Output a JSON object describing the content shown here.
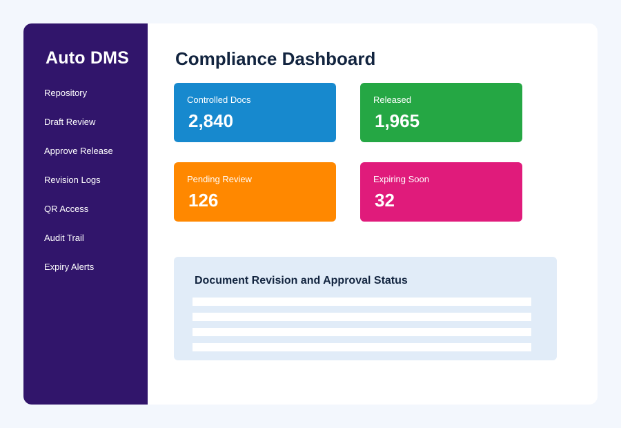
{
  "sidebar": {
    "brand": "Auto DMS",
    "items": [
      {
        "label": "Repository"
      },
      {
        "label": "Draft Review"
      },
      {
        "label": "Approve Release"
      },
      {
        "label": "Revision Logs"
      },
      {
        "label": "QR Access"
      },
      {
        "label": "Audit Trail"
      },
      {
        "label": "Expiry Alerts"
      }
    ]
  },
  "main": {
    "title": "Compliance Dashboard",
    "cards": [
      {
        "label": "Controlled Docs",
        "value": "2,840",
        "color": "#1789ce"
      },
      {
        "label": "Released",
        "value": "1,965",
        "color": "#25a744"
      },
      {
        "label": "Pending Review",
        "value": "126",
        "color": "#ff8800"
      },
      {
        "label": "Expiring Soon",
        "value": "32",
        "color": "#e01b7b"
      }
    ],
    "panel": {
      "title": "Document Revision and Approval Status"
    }
  },
  "colors": {
    "sidebar": "#31156b",
    "background": "#f3f7fd",
    "panel": "#e1ecf8",
    "heading": "#12243f"
  }
}
